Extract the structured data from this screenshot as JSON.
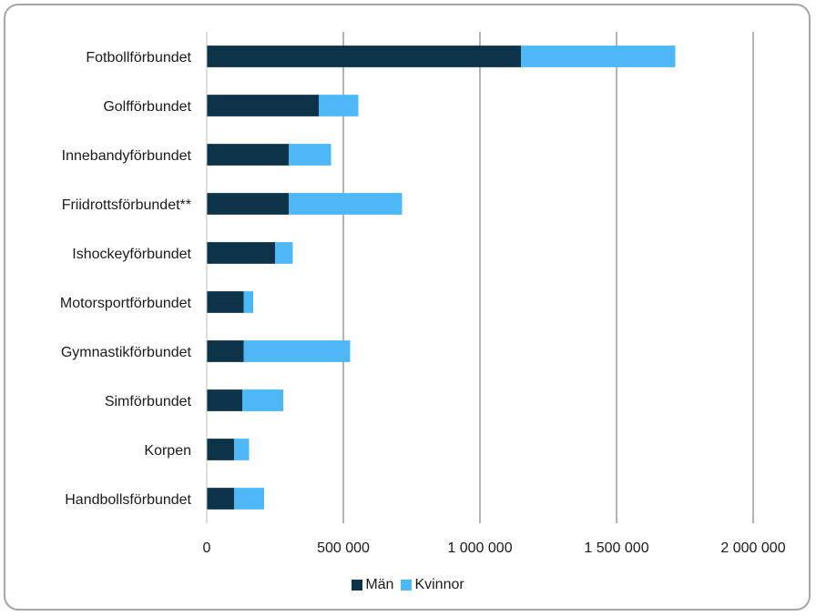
{
  "chart_data": {
    "type": "bar",
    "orientation": "horizontal",
    "stacked": true,
    "categories": [
      "Fotbollförbundet",
      "Golfförbundet",
      "Innebandyförbundet",
      "Friidrottsförbundet**",
      "Ishockeyförbundet",
      "Motorsportförbundet",
      "Gymnastikförbundet",
      "Simförbundet",
      "Korpen",
      "Handbollsförbundet"
    ],
    "series": [
      {
        "name": "Män",
        "color": "#0d3349",
        "values": [
          1150000,
          410000,
          300000,
          300000,
          250000,
          135000,
          135000,
          130000,
          100000,
          100000
        ]
      },
      {
        "name": "Kvinnor",
        "color": "#4db8f5",
        "values": [
          565000,
          145000,
          155000,
          415000,
          65000,
          35000,
          390000,
          150000,
          55000,
          110000
        ]
      }
    ],
    "xlim": [
      0,
      2000000
    ],
    "xticks": [
      0,
      500000,
      1000000,
      1500000,
      2000000
    ],
    "xtick_labels": [
      "0",
      "500 000",
      "1 000 000",
      "1 500 000",
      "2 000 000"
    ],
    "grid": "vertical",
    "legend_position": "bottom"
  }
}
